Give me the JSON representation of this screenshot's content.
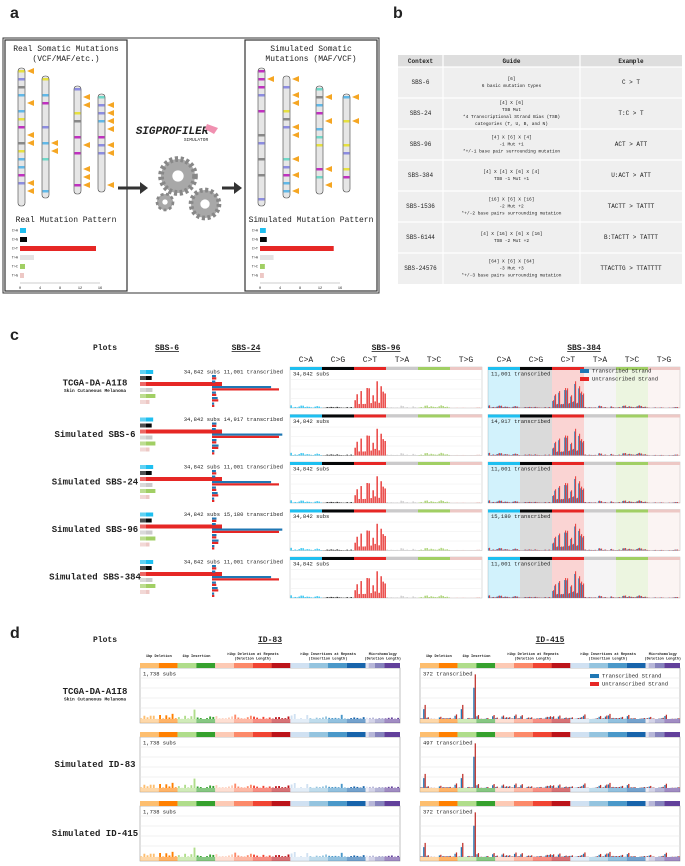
{
  "panel_a": {
    "label": "a",
    "real_title": [
      "Real Somatic Mutations",
      "(VCF/MAF/etc.)"
    ],
    "real_pattern": "Real Mutation Pattern",
    "logo": "SIGPROFILER",
    "logo_sub": "SIMULATOR",
    "sim_title": [
      "Simulated Somatic",
      "Mutations (MAF/VCF)"
    ],
    "sim_pattern": "Simulated Mutation Pattern",
    "mutation_types": [
      "C>A",
      "C>G",
      "C>T",
      "T>A",
      "T>C",
      "T>G"
    ],
    "axis_ticks": [
      "0",
      "4",
      "8",
      "12",
      "16"
    ]
  },
  "panel_b": {
    "label": "b",
    "headers": [
      "Context",
      "Guide",
      "Example"
    ],
    "rows": [
      {
        "context": "SBS-6",
        "guide": [
          "[6]",
          "6 basic mutation types"
        ],
        "example": "C > T"
      },
      {
        "context": "SBS-24",
        "guide": [
          "[4] X [6]",
          "TSB    Mut",
          "*4 Transcriptional Strand Bias (TSB)",
          "categories (T, U, B, and N)"
        ],
        "example": "T:C > T"
      },
      {
        "context": "SBS-96",
        "guide": [
          "[4] X [6] X [4]",
          "-1    Mut    +1",
          "*+/-1 base pair surrounding mutation"
        ],
        "example": "ACT > ATT"
      },
      {
        "context": "SBS-384",
        "guide": [
          "[4] X [4] X [6] X [4]",
          "TSB   -1    Mut    +1"
        ],
        "example": "U:ACT > ATT"
      },
      {
        "context": "SBS-1536",
        "guide": [
          "[16] X [6] X [16]",
          "-2    Mut    +2",
          "*+/-2 base pairs surrounding mutation"
        ],
        "example": "TACTT > TATTT"
      },
      {
        "context": "SBS-6144",
        "guide": [
          "[4] X [16] X [6] X [16]",
          "TSB   -2    Mut    +2"
        ],
        "example": "B:TACTT > TATTT"
      },
      {
        "context": "SBS-24576",
        "guide": [
          "[64] X [6] X [64]",
          "-3    Mut    +3",
          "*+/-3 base pairs surrounding mutation"
        ],
        "example": "TTACTTG > TTATTTT"
      }
    ]
  },
  "panel_c": {
    "label": "c",
    "plots_label": "Plots",
    "columns": [
      "SBS-6",
      "SBS-24",
      "SBS-96",
      "SBS-384"
    ],
    "mutation_types": [
      "C>A",
      "C>G",
      "C>T",
      "T>A",
      "T>C",
      "T>G"
    ],
    "legend": [
      "Transcribed Strand",
      "Untranscribed Strand"
    ],
    "rows": [
      {
        "name": [
          "TCGA-DA-A1I8",
          "Skin Cutaneous Melanoma"
        ],
        "counts": [
          "34,842 subs",
          "11,001 transcribed",
          "34,842 subs",
          "11,001 transcribed"
        ]
      },
      {
        "name": [
          "Simulated SBS-6"
        ],
        "counts": [
          "34,842 subs",
          "14,917 transcribed",
          "34,842 subs",
          "14,917 transcribed"
        ]
      },
      {
        "name": [
          "Simulated SBS-24"
        ],
        "counts": [
          "34,842 subs",
          "11,001 transcribed",
          "34,842 subs",
          "11,001 transcribed"
        ]
      },
      {
        "name": [
          "Simulated SBS-96"
        ],
        "counts": [
          "34,842 subs",
          "15,180 transcribed",
          "34,842 subs",
          "15,180 transcribed"
        ]
      },
      {
        "name": [
          "Simulated SBS-384"
        ],
        "counts": [
          "34,842 subs",
          "11,001 transcribed",
          "34,842 subs",
          "11,001 transcribed"
        ]
      }
    ]
  },
  "panel_d": {
    "label": "d",
    "plots_label": "Plots",
    "columns": [
      "ID-83",
      "ID-415"
    ],
    "headers": [
      [
        "1bp Deletion"
      ],
      [
        "1bp Insertion"
      ],
      [
        ">1bp Deletion at Repeats",
        "(Deletion Length)"
      ],
      [
        ">1bp Insertions at Repeats",
        "(Insertion Length)"
      ],
      [
        "Microhomology",
        "(Deletion Length)"
      ]
    ],
    "legend": [
      "Transcribed Strand",
      "Untranscribed Strand"
    ],
    "rows": [
      {
        "name": [
          "TCGA-DA-A1I8",
          "Skin Cutaneous Melanoma"
        ],
        "counts": [
          "1,738 subs",
          "372 transcribed"
        ]
      },
      {
        "name": [
          "Simulated ID-83"
        ],
        "counts": [
          "1,738 subs",
          "497 transcribed"
        ]
      },
      {
        "name": [
          "Simulated ID-415"
        ],
        "counts": [
          "1,738 subs",
          "372 transcribed"
        ]
      }
    ]
  }
}
